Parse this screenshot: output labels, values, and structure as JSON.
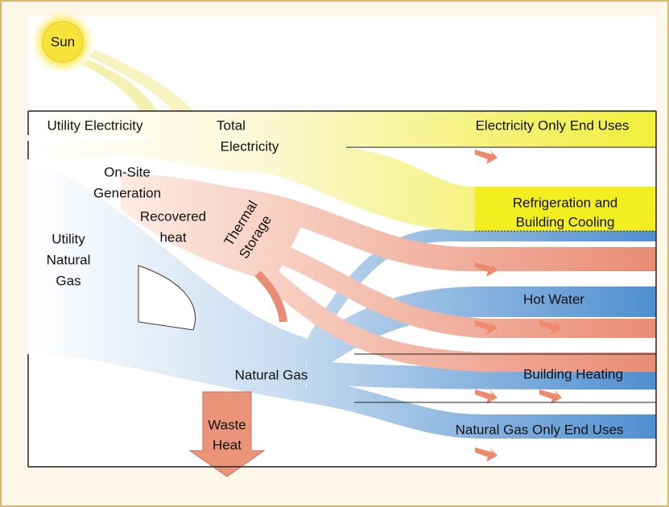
{
  "labels": [
    [
      "Sun"
    ],
    [
      "Utility Electricity"
    ],
    [
      "Total",
      "Electricity"
    ],
    [
      "Electricity Only End Uses"
    ],
    [
      "On-Site",
      "Generation"
    ],
    [
      "Recovered",
      "heat"
    ],
    [
      "Utility",
      "Natural",
      "Gas"
    ],
    [
      "Thermal",
      "Storage"
    ],
    [
      "Refrigeration and",
      "Building Cooling"
    ],
    [
      "Hot Water"
    ],
    [
      "Natural Gas"
    ],
    [
      "Building Heating"
    ],
    [
      "Natural Gas Only End Uses"
    ],
    [
      "Waste",
      "Heat"
    ]
  ]
}
